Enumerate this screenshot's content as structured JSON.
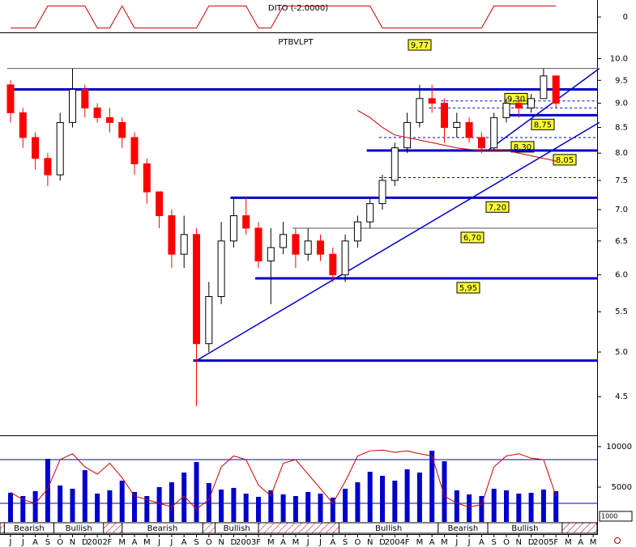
{
  "chart_data": {
    "type": "candlestick",
    "title": "PTBVLPT",
    "categories": [
      "J",
      "J",
      "A",
      "S",
      "O",
      "N",
      "D",
      "2002",
      "F",
      "M",
      "A",
      "M",
      "J",
      "J",
      "A",
      "S",
      "O",
      "N",
      "D",
      "2003",
      "F",
      "M",
      "A",
      "M",
      "J",
      "J",
      "A",
      "S",
      "O",
      "N",
      "D",
      "2004",
      "F",
      "M",
      "A",
      "M",
      "J",
      "J",
      "A",
      "S",
      "O",
      "N",
      "D",
      "2005",
      "F",
      "M",
      "A",
      "M"
    ],
    "open": [
      9.4,
      8.8,
      8.3,
      7.9,
      7.6,
      8.6,
      9.3,
      8.9,
      8.7,
      8.6,
      8.3,
      7.8,
      7.3,
      6.9,
      6.3,
      6.6,
      5.1,
      5.7,
      6.5,
      6.9,
      6.7,
      6.2,
      6.4,
      6.6,
      6.3,
      6.5,
      6.3,
      6.0,
      6.5,
      6.8,
      7.1,
      7.5,
      8.1,
      8.6,
      9.1,
      9.0,
      8.5,
      8.6,
      8.3,
      8.1,
      8.7,
      9.0,
      8.9,
      9.1,
      9.6,
      null,
      null,
      null
    ],
    "high": [
      9.5,
      8.9,
      8.4,
      8.0,
      8.8,
      9.77,
      9.4,
      9.0,
      8.9,
      8.7,
      8.4,
      7.9,
      7.3,
      7.0,
      6.9,
      6.7,
      5.9,
      6.8,
      7.2,
      7.2,
      6.8,
      6.7,
      6.8,
      6.7,
      6.7,
      6.6,
      6.4,
      6.6,
      6.9,
      7.2,
      7.6,
      8.2,
      8.8,
      9.4,
      9.4,
      9.1,
      8.8,
      8.7,
      8.4,
      8.8,
      9.1,
      9.1,
      9.2,
      9.77,
      9.6,
      null,
      null,
      null
    ],
    "low": [
      8.6,
      8.1,
      7.7,
      7.4,
      7.5,
      8.5,
      8.7,
      8.6,
      8.4,
      8.1,
      7.6,
      7.1,
      6.7,
      6.1,
      6.1,
      4.4,
      5.0,
      5.6,
      6.4,
      6.6,
      6.1,
      5.6,
      6.3,
      6.1,
      6.2,
      6.2,
      5.9,
      5.9,
      6.4,
      6.7,
      7.0,
      7.4,
      8.0,
      8.5,
      8.8,
      8.2,
      8.3,
      8.2,
      8.0,
      8.05,
      8.6,
      8.7,
      8.8,
      9.1,
      8.9,
      null,
      null,
      null
    ],
    "close": [
      8.8,
      8.3,
      7.9,
      7.6,
      8.6,
      9.3,
      8.9,
      8.7,
      8.6,
      8.3,
      7.8,
      7.3,
      6.9,
      6.3,
      6.6,
      5.1,
      5.7,
      6.5,
      6.9,
      6.7,
      6.2,
      6.4,
      6.6,
      6.3,
      6.5,
      6.3,
      6.0,
      6.5,
      6.8,
      7.1,
      7.5,
      8.1,
      8.6,
      9.1,
      9.0,
      8.5,
      8.6,
      8.3,
      8.1,
      8.7,
      9.0,
      8.9,
      9.1,
      9.6,
      9.0,
      null,
      null,
      null
    ],
    "up_color": "#ffffff",
    "down_color": "#ff0000",
    "ma": {
      "color": "#cc0000",
      "values": [
        null,
        null,
        null,
        null,
        null,
        null,
        null,
        null,
        null,
        null,
        null,
        null,
        null,
        null,
        null,
        null,
        null,
        null,
        null,
        null,
        null,
        null,
        null,
        null,
        null,
        null,
        null,
        null,
        8.85,
        8.7,
        8.5,
        8.35,
        8.3,
        8.25,
        8.2,
        8.15,
        8.1,
        8.07,
        8.05,
        8.05,
        8.05,
        8.0,
        7.95,
        7.9,
        7.85,
        null,
        null,
        null
      ]
    },
    "ylim": [
      4.17,
      10.6
    ],
    "log_scale": true,
    "yticks": [
      {
        "value": 4.5,
        "label": "4.5"
      },
      {
        "value": 5,
        "label": "5.0"
      },
      {
        "value": 5.5,
        "label": "5.5"
      },
      {
        "value": 6,
        "label": "6.0"
      },
      {
        "value": 6.5,
        "label": "6.5"
      },
      {
        "value": 7,
        "label": "7.0"
      },
      {
        "value": 7.5,
        "label": "7.5"
      },
      {
        "value": 8,
        "label": "8.0"
      },
      {
        "value": 8.5,
        "label": "8.5"
      },
      {
        "value": 9,
        "label": "9.0"
      },
      {
        "value": 9.5,
        "label": "9.5"
      },
      {
        "value": 10,
        "label": "10.0"
      }
    ],
    "levels": [
      {
        "value": 9.77,
        "label": "9,77",
        "style": "thin",
        "start": 0
      },
      {
        "value": 9.3,
        "label": "9,30",
        "style": "thick",
        "start": 0
      },
      {
        "value": 8.75,
        "label": "8,75",
        "style": "thick",
        "start": 40
      },
      {
        "value": 8.3,
        "label": "8,30",
        "style": "dashed",
        "start": 30
      },
      {
        "value": 8.05,
        "label": "8,05",
        "style": "thick",
        "start": 29
      },
      {
        "value": 7.2,
        "label": "7,20",
        "style": "thick",
        "start": 18
      },
      {
        "value": 6.7,
        "label": "6,70",
        "style": "thin",
        "start": 23
      },
      {
        "value": 5.95,
        "label": "5,95",
        "style": "thick",
        "start": 20
      },
      {
        "value": 4.9,
        "style": "thick",
        "start": 15
      },
      {
        "value": 9.05,
        "style": "dashed",
        "start": 35
      },
      {
        "value": 8.9,
        "style": "dashed",
        "start": 34
      },
      {
        "value": 7.55,
        "style": "dashed",
        "start": 30
      }
    ],
    "trendlines": [
      {
        "x": [
          15,
          47.5
        ],
        "y": [
          4.9,
          8.6
        ]
      },
      {
        "x": [
          38.5,
          47.5
        ],
        "y": [
          8.05,
          9.77
        ]
      }
    ],
    "indicator": {
      "label": "DITO (-2.0000)",
      "color": "#cc0000",
      "values": [
        -1,
        -1,
        -1,
        1,
        1,
        1,
        1,
        -1,
        -1,
        1,
        -1,
        -1,
        -1,
        -1,
        -1,
        -1,
        1,
        1,
        1,
        1,
        -1,
        -1,
        1,
        1,
        1,
        1,
        1,
        1,
        1,
        1,
        -1,
        -1,
        -1,
        -1,
        -1,
        -1,
        -1,
        -1,
        -1,
        1,
        1,
        1,
        1,
        1,
        1,
        null,
        null,
        null
      ],
      "ylim": [
        -1.25,
        1.25
      ],
      "yticks": [
        0
      ]
    },
    "volume": {
      "color": "#0000cc",
      "values": [
        4300,
        3900,
        4500,
        8500,
        5200,
        4800,
        7100,
        4200,
        4600,
        5800,
        4400,
        3900,
        5000,
        5600,
        6800,
        8100,
        5500,
        4700,
        4900,
        4200,
        3800,
        4600,
        4100,
        3900,
        4400,
        4200,
        3700,
        4800,
        5600,
        6900,
        6400,
        5800,
        7200,
        6800,
        9500,
        8200,
        4600,
        4100,
        3900,
        4800,
        4600,
        4200,
        4300,
        4700,
        4500,
        null,
        null,
        null
      ],
      "ylim": [
        700,
        11200
      ],
      "yticks": [
        5000,
        10000
      ],
      "yticklabels": [
        "5000",
        "10000"
      ]
    },
    "stochastic": {
      "color": "#cc0000",
      "values": [
        35,
        25,
        20,
        40,
        80,
        88,
        70,
        60,
        75,
        55,
        30,
        25,
        20,
        15,
        30,
        12,
        25,
        70,
        85,
        80,
        45,
        30,
        75,
        80,
        60,
        40,
        20,
        50,
        85,
        92,
        93,
        90,
        92,
        88,
        85,
        30,
        20,
        15,
        18,
        70,
        85,
        88,
        82,
        80,
        30,
        null,
        null,
        null
      ],
      "y2lim": [
        -5.6,
        111.1
      ],
      "bands": [
        20,
        80
      ],
      "band_color": "#0000cc"
    },
    "sentiment": [
      {
        "label": "Bearish",
        "from": -0.5,
        "to": 3.5
      },
      {
        "label": "Bullish",
        "from": 3.5,
        "to": 7.5
      },
      {
        "label": "Bearish",
        "from": 9,
        "to": 15.5
      },
      {
        "label": "Bullish",
        "from": 16.5,
        "to": 20
      },
      {
        "label": "Bullish",
        "from": 26.5,
        "to": 34.5
      },
      {
        "label": "Bearish",
        "from": 34.5,
        "to": 38.5
      },
      {
        "label": "Bullish",
        "from": 38.5,
        "to": 44.5
      }
    ],
    "volume_scale_note": "1000"
  }
}
